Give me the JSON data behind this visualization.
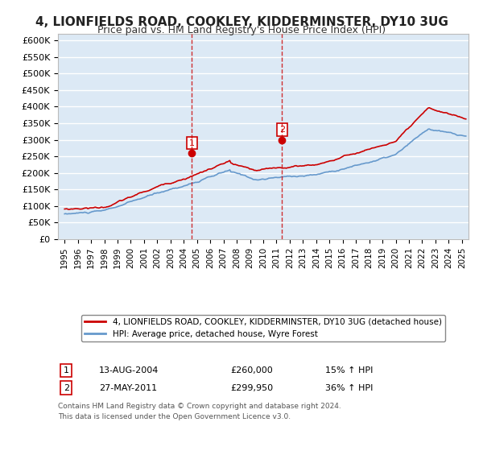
{
  "title": "4, LIONFIELDS ROAD, COOKLEY, KIDDERMINSTER, DY10 3UG",
  "subtitle": "Price paid vs. HM Land Registry's House Price Index (HPI)",
  "title_fontsize": 11,
  "subtitle_fontsize": 9,
  "background_color": "#ffffff",
  "plot_bg_color": "#dce9f5",
  "grid_color": "#ffffff",
  "red_color": "#cc0000",
  "blue_color": "#6699cc",
  "dashed_color": "#cc0000",
  "marker1_date": 2004.62,
  "marker2_date": 2011.41,
  "marker1_price": 260000,
  "marker2_price": 299950,
  "sale1_label": "1",
  "sale2_label": "2",
  "sale1_date_str": "13-AUG-2004",
  "sale1_price_str": "£260,000",
  "sale1_hpi_str": "15% ↑ HPI",
  "sale2_date_str": "27-MAY-2011",
  "sale2_price_str": "£299,950",
  "sale2_hpi_str": "36% ↑ HPI",
  "legend1_label": "4, LIONFIELDS ROAD, COOKLEY, KIDDERMINSTER, DY10 3UG (detached house)",
  "legend2_label": "HPI: Average price, detached house, Wyre Forest",
  "footer1": "Contains HM Land Registry data © Crown copyright and database right 2024.",
  "footer2": "This data is licensed under the Open Government Licence v3.0.",
  "ylim": [
    0,
    620000
  ],
  "xlim": [
    1994.5,
    2025.5
  ],
  "yticks": [
    0,
    50000,
    100000,
    150000,
    200000,
    250000,
    300000,
    350000,
    400000,
    450000,
    500000,
    550000,
    600000
  ],
  "ytick_labels": [
    "£0",
    "£50K",
    "£100K",
    "£150K",
    "£200K",
    "£250K",
    "£300K",
    "£350K",
    "£400K",
    "£450K",
    "£500K",
    "£550K",
    "£600K"
  ],
  "xtick_years": [
    1995,
    1996,
    1997,
    1998,
    1999,
    2000,
    2001,
    2002,
    2003,
    2004,
    2005,
    2006,
    2007,
    2008,
    2009,
    2010,
    2011,
    2012,
    2013,
    2014,
    2015,
    2016,
    2017,
    2018,
    2019,
    2020,
    2021,
    2022,
    2023,
    2024,
    2025
  ]
}
